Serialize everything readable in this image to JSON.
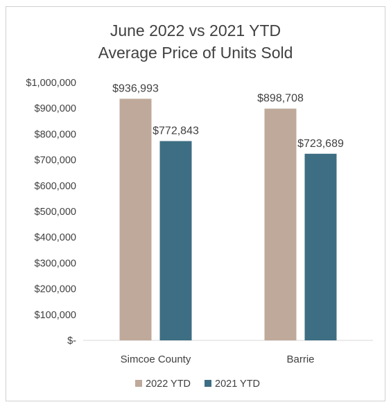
{
  "chart_data": {
    "type": "bar",
    "title_lines": [
      "June 2022 vs 2021 YTD",
      "Average Price of Units Sold"
    ],
    "categories": [
      "Simcoe County",
      "Barrie"
    ],
    "series": [
      {
        "name": "2022 YTD",
        "color": "#bfa99a",
        "values": [
          936993,
          898708
        ],
        "labels": [
          "$936,993",
          "$898,708"
        ]
      },
      {
        "name": "2021 YTD",
        "color": "#3d6e83",
        "values": [
          772843,
          723689
        ],
        "labels": [
          "$772,843",
          "$723,689"
        ]
      }
    ],
    "ylim": [
      0,
      1000000
    ],
    "ytick_labels": [
      "$-",
      "$100,000",
      "$200,000",
      "$300,000",
      "$400,000",
      "$500,000",
      "$600,000",
      "$700,000",
      "$800,000",
      "$900,000",
      "$1,000,000"
    ],
    "grid": false,
    "legend_position": "bottom"
  }
}
